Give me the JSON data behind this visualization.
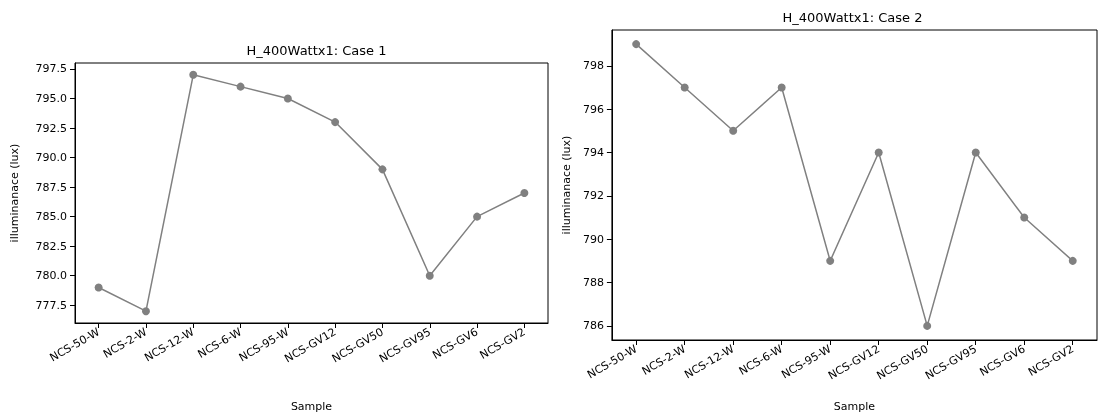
{
  "chart_data": [
    {
      "type": "line",
      "title": "H_400Wattx1: Case 1",
      "xlabel": "Sample",
      "ylabel": "illuminanace (lux)",
      "categories": [
        "NCS-50-W",
        "NCS-2-W",
        "NCS-12-W",
        "NCS-6-W",
        "NCS-95-W",
        "NCS-GV12",
        "NCS-GV50",
        "NCS-GV95",
        "NCS-GV6",
        "NCS-GV2"
      ],
      "series": [
        {
          "color": "#808080",
          "values": [
            779,
            777,
            797,
            796,
            795,
            793,
            789,
            780,
            785,
            787
          ]
        }
      ],
      "ylim": [
        776,
        798
      ],
      "yticks": [
        {
          "value": 777.5,
          "label": "777.5"
        },
        {
          "value": 780,
          "label": "780.0"
        },
        {
          "value": 782.5,
          "label": "782.5"
        },
        {
          "value": 785,
          "label": "785.0"
        },
        {
          "value": 787.5,
          "label": "787.5"
        },
        {
          "value": 790,
          "label": "790.0"
        },
        {
          "value": 792.5,
          "label": "792.5"
        },
        {
          "value": 795,
          "label": "795.0"
        },
        {
          "value": 797.5,
          "label": "797.5"
        }
      ],
      "grid": false,
      "marker": "circle",
      "line_style": "solid"
    },
    {
      "type": "line",
      "title": "H_400Wattx1: Case 2",
      "xlabel": "Sample",
      "ylabel": "illuminanace (lux)",
      "categories": [
        "NCS-50-W",
        "NCS-2-W",
        "NCS-12-W",
        "NCS-6-W",
        "NCS-95-W",
        "NCS-GV12",
        "NCS-GV50",
        "NCS-GV95",
        "NCS-GV6",
        "NCS-GV2"
      ],
      "series": [
        {
          "color": "#808080",
          "values": [
            799,
            797,
            795,
            797,
            789,
            794,
            786,
            794,
            791,
            789
          ]
        }
      ],
      "ylim": [
        785.35,
        799.65
      ],
      "yticks": [
        786,
        788,
        790,
        792,
        794,
        796,
        798
      ],
      "grid": false,
      "marker": "circle",
      "line_style": "solid"
    }
  ]
}
